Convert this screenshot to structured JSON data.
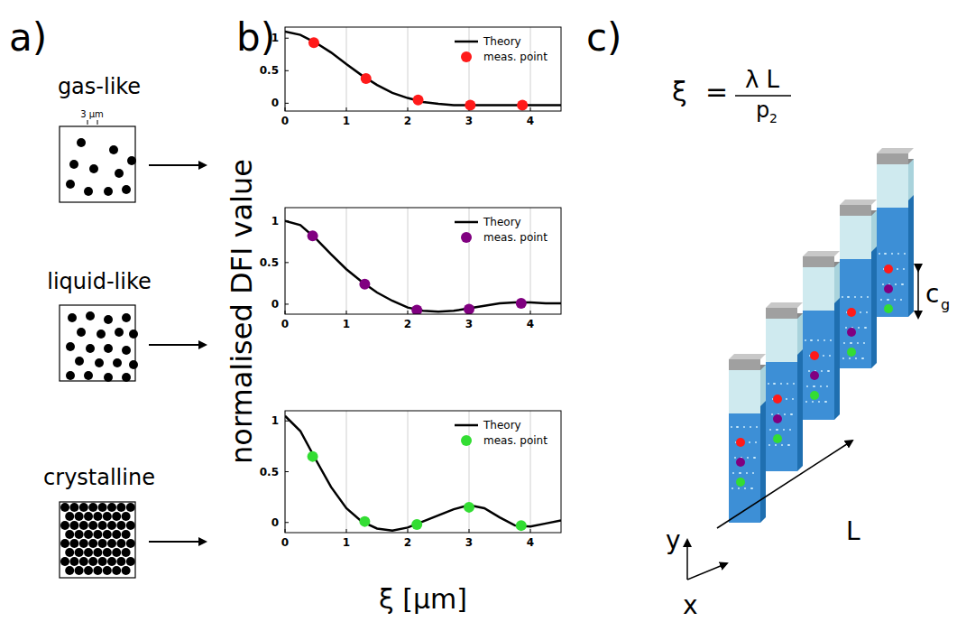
{
  "chart_data": [
    {
      "type": "line",
      "xlim": [
        0,
        4.5
      ],
      "xticks": [
        0,
        1,
        2,
        3,
        4
      ],
      "ylim": [
        -0.12,
        1.17
      ],
      "yticks": [
        0,
        0.5,
        1
      ],
      "grid": "x",
      "legend": "upper right",
      "series": [
        {
          "name": "Theory",
          "type": "line",
          "color": "#000000",
          "x": [
            0,
            0.25,
            0.5,
            0.75,
            1,
            1.25,
            1.5,
            1.75,
            2,
            2.25,
            2.5,
            2.75,
            3,
            3.25,
            3.5,
            3.75,
            4,
            4.25,
            4.5
          ],
          "values": [
            1.1,
            1.05,
            0.93,
            0.78,
            0.6,
            0.43,
            0.28,
            0.16,
            0.08,
            0.02,
            -0.01,
            -0.03,
            -0.03,
            -0.03,
            -0.03,
            -0.03,
            -0.03,
            -0.03,
            -0.03
          ]
        },
        {
          "name": "meas. point",
          "type": "scatter",
          "marker": "circle",
          "color": "#ff1a1a",
          "x": [
            0.47,
            1.32,
            2.17,
            3.02,
            3.87
          ],
          "values": [
            0.93,
            0.38,
            0.05,
            -0.03,
            -0.03
          ]
        }
      ]
    },
    {
      "type": "line",
      "xlim": [
        0,
        4.5
      ],
      "xticks": [
        0,
        1,
        2,
        3,
        4
      ],
      "ylim": [
        -0.12,
        1.16
      ],
      "yticks": [
        0,
        0.5,
        1
      ],
      "grid": "x",
      "legend": "upper right",
      "series": [
        {
          "name": "Theory",
          "type": "line",
          "color": "#000000",
          "x": [
            0,
            0.25,
            0.5,
            0.75,
            1,
            1.25,
            1.5,
            1.75,
            2,
            2.25,
            2.5,
            2.75,
            3,
            3.25,
            3.5,
            3.75,
            4,
            4.25,
            4.5
          ],
          "values": [
            1.0,
            0.95,
            0.79,
            0.6,
            0.42,
            0.27,
            0.14,
            0.04,
            -0.04,
            -0.08,
            -0.09,
            -0.08,
            -0.05,
            -0.02,
            0.01,
            0.02,
            0.02,
            0.01,
            0.01
          ]
        },
        {
          "name": "meas. point",
          "type": "scatter",
          "marker": "circle",
          "color": "#800080",
          "x": [
            0.45,
            1.3,
            2.15,
            3.0,
            3.85
          ],
          "values": [
            0.82,
            0.24,
            -0.07,
            -0.06,
            0.01
          ]
        }
      ]
    },
    {
      "type": "line",
      "xlim": [
        0,
        4.5
      ],
      "xticks": [
        0,
        1,
        2,
        3,
        4
      ],
      "ylim": [
        -0.1,
        1.1
      ],
      "yticks": [
        0,
        0.5,
        1
      ],
      "grid": "x",
      "legend": "upper right",
      "series": [
        {
          "name": "Theory",
          "type": "line",
          "color": "#000000",
          "x": [
            0,
            0.25,
            0.5,
            0.75,
            1,
            1.25,
            1.5,
            1.75,
            2,
            2.25,
            2.5,
            2.75,
            3,
            3.25,
            3.5,
            3.75,
            4,
            4.25,
            4.5
          ],
          "values": [
            1.05,
            0.9,
            0.62,
            0.35,
            0.14,
            0.01,
            -0.06,
            -0.08,
            -0.05,
            0.01,
            0.07,
            0.13,
            0.17,
            0.14,
            0.05,
            -0.03,
            -0.04,
            -0.01,
            0.02
          ]
        },
        {
          "name": "meas. point",
          "type": "scatter",
          "marker": "circle",
          "color": "#33dd33",
          "x": [
            0.45,
            1.3,
            2.15,
            3.0,
            3.85
          ],
          "values": [
            0.65,
            0.01,
            -0.02,
            0.15,
            -0.03
          ]
        }
      ]
    }
  ],
  "panel_b": {
    "x_label": "ξ [µm]",
    "y_label": "normalised DFI value"
  },
  "panel_labels": [
    "a)",
    "b)",
    "c)"
  ],
  "panel_a": {
    "states": [
      "gas-like",
      "liquid-like",
      "crystalline"
    ],
    "scale_label": "3 µm"
  },
  "panel_c": {
    "formula": {
      "lhs": "ξ",
      "equals": "=",
      "numerator": "λ L",
      "denominator": "p",
      "denominator_subscript": "2"
    },
    "axis_labels": [
      "y",
      "x"
    ],
    "length_label": "L",
    "gradient_label": {
      "text": "c",
      "subscript": "g"
    }
  }
}
